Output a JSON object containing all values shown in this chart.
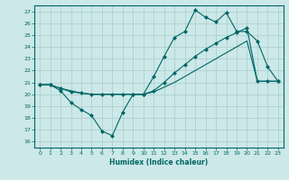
{
  "xlabel": "Humidex (Indice chaleur)",
  "ylabel": "",
  "background_color": "#cce8e8",
  "grid_color": "#aacccc",
  "line_color": "#006666",
  "xlim": [
    -0.5,
    23.5
  ],
  "ylim": [
    15.5,
    27.5
  ],
  "xticks": [
    0,
    1,
    2,
    3,
    4,
    5,
    6,
    7,
    8,
    9,
    10,
    11,
    12,
    13,
    14,
    15,
    16,
    17,
    18,
    19,
    20,
    21,
    22,
    23
  ],
  "yticks": [
    16,
    17,
    18,
    19,
    20,
    21,
    22,
    23,
    24,
    25,
    26,
    27
  ],
  "line1_x": [
    0,
    1,
    2,
    3,
    4,
    5,
    6,
    7,
    8,
    9,
    10,
    11,
    12,
    13,
    14,
    15,
    16,
    17,
    18,
    19,
    20,
    21,
    22,
    23
  ],
  "line1_y": [
    20.8,
    20.8,
    20.3,
    19.3,
    18.7,
    18.2,
    16.9,
    16.5,
    18.5,
    20.0,
    20.0,
    21.5,
    23.2,
    24.8,
    25.3,
    27.1,
    26.5,
    26.1,
    26.9,
    25.3,
    25.3,
    24.5,
    22.3,
    21.1
  ],
  "line2_x": [
    0,
    1,
    2,
    3,
    4,
    5,
    6,
    7,
    8,
    9,
    10,
    11,
    12,
    13,
    14,
    15,
    16,
    17,
    18,
    19,
    20,
    21,
    22,
    23
  ],
  "line2_y": [
    20.8,
    20.8,
    20.5,
    20.2,
    20.1,
    20.0,
    20.0,
    20.0,
    20.0,
    20.0,
    20.0,
    20.3,
    21.0,
    21.8,
    22.5,
    23.2,
    23.8,
    24.3,
    24.8,
    25.2,
    25.6,
    21.1,
    21.1,
    21.1
  ],
  "line3_x": [
    0,
    1,
    2,
    3,
    4,
    5,
    6,
    7,
    8,
    9,
    10,
    11,
    12,
    13,
    14,
    15,
    16,
    17,
    18,
    19,
    20,
    21,
    22,
    23
  ],
  "line3_y": [
    20.8,
    20.8,
    20.5,
    20.3,
    20.1,
    20.0,
    20.0,
    20.0,
    20.0,
    20.0,
    20.0,
    20.2,
    20.6,
    21.0,
    21.5,
    22.0,
    22.5,
    23.0,
    23.5,
    24.0,
    24.5,
    21.1,
    21.1,
    21.1
  ],
  "marker_size": 2.5
}
